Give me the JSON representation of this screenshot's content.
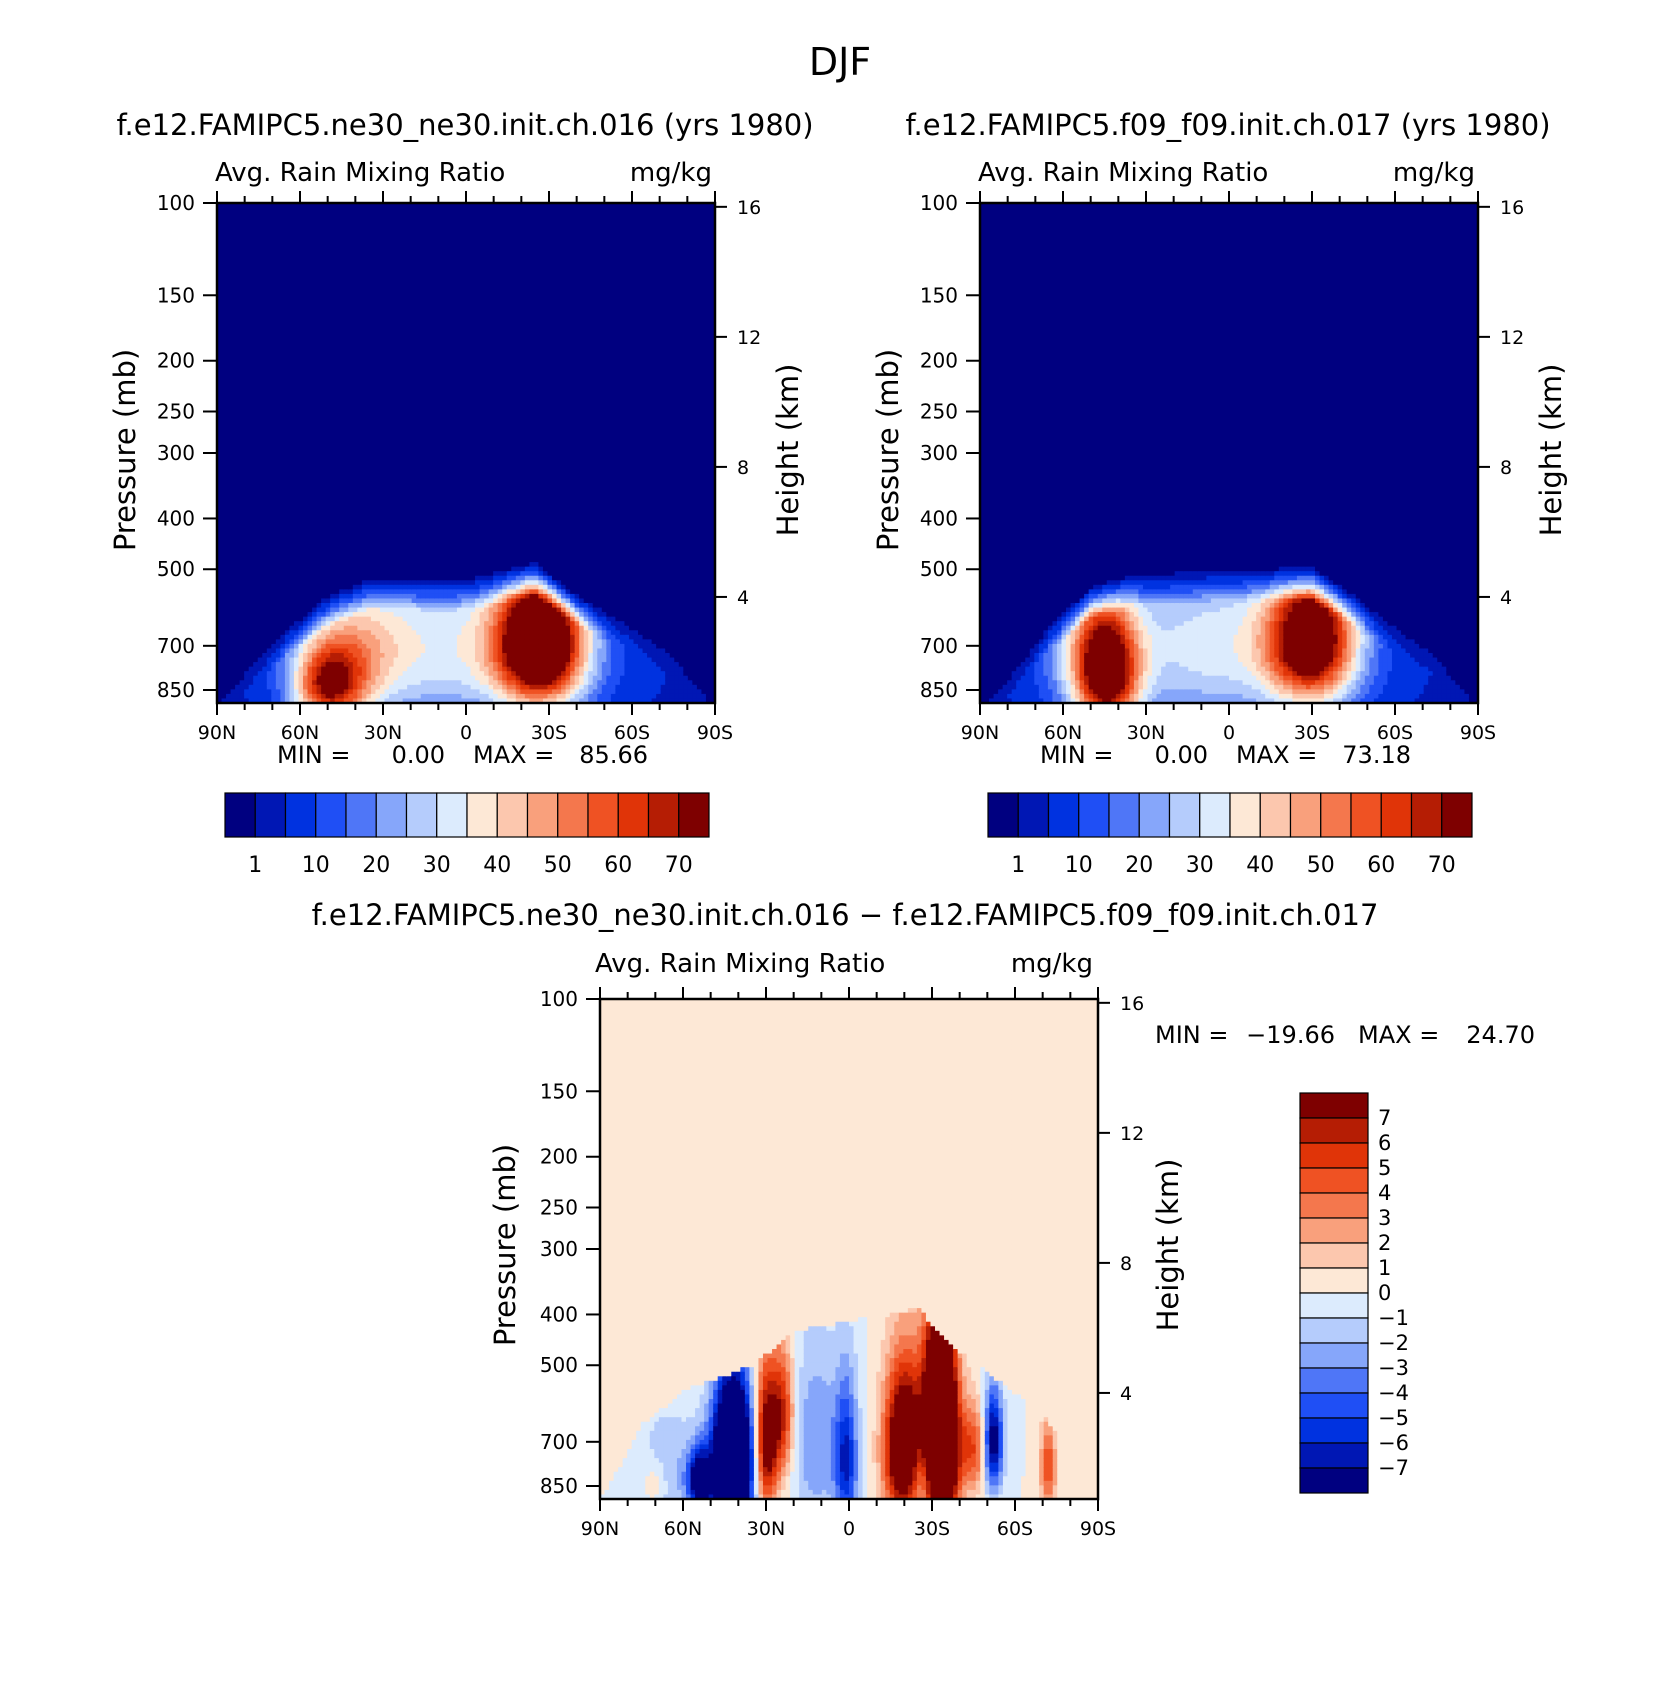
{
  "figure": {
    "title": "DJF"
  },
  "colors": {
    "abs_scale": [
      "#000080",
      "#0017b4",
      "#0032e0",
      "#1f4ff5",
      "#4f76f7",
      "#86a6fa",
      "#b5ccfc",
      "#dcebfd",
      "#fde8d6",
      "#fcc7ae",
      "#f9a07c",
      "#f4774d",
      "#ef5223",
      "#e03408",
      "#b51d04",
      "#7e0000"
    ],
    "diff_scale": [
      "#000080",
      "#0017b4",
      "#0032e0",
      "#1f4ff5",
      "#4f76f7",
      "#86a6fa",
      "#b5ccfc",
      "#dcebfd",
      "#fde8d6",
      "#fcc7ae",
      "#f9a07c",
      "#f4774d",
      "#ef5223",
      "#e03408",
      "#b51d04",
      "#7e0000"
    ]
  },
  "chart_data": [
    {
      "type": "heatmap",
      "panel": "left",
      "title": "f.e12.FAMIPC5.ne30_ne30.init.ch.016 (yrs 1980)",
      "subtitle_left": "Avg. Rain Mixing Ratio",
      "subtitle_right": "mg/kg",
      "ylabel": "Pressure (mb)",
      "y2label": "Height (km)",
      "x_ticks": [
        "90N",
        "60N",
        "30N",
        "0",
        "30S",
        "60S",
        "90S"
      ],
      "y_ticks": [
        "100",
        "150",
        "200",
        "250",
        "300",
        "400",
        "500",
        "700",
        "850"
      ],
      "y2_ticks": [
        "16",
        "12",
        "8",
        "4"
      ],
      "stats": {
        "min_label": "MIN =",
        "min": "0.00",
        "max_label": "MAX =",
        "max": "85.66"
      },
      "colorbar": {
        "orientation": "horizontal",
        "labels": [
          "1",
          "10",
          "20",
          "30",
          "40",
          "50",
          "60",
          "70"
        ]
      },
      "field": {
        "blobs": [
          {
            "lat": -27,
            "p": 690,
            "wlat": 11,
            "wp": 140,
            "amp": 86
          },
          {
            "lat": 50,
            "p": 830,
            "wlat": 9,
            "wp": 110,
            "amp": 55
          },
          {
            "lat": 5,
            "p": 700,
            "wlat": 34,
            "wp": 200,
            "amp": 30
          },
          {
            "lat": 38,
            "p": 720,
            "wlat": 12,
            "wp": 160,
            "amp": 20
          }
        ],
        "top_p": [
          [
            90,
            900
          ],
          [
            80,
            780
          ],
          [
            65,
            650
          ],
          [
            50,
            560
          ],
          [
            35,
            520
          ],
          [
            0,
            520
          ],
          [
            -25,
            485
          ],
          [
            -40,
            560
          ],
          [
            -60,
            640
          ],
          [
            -75,
            720
          ],
          [
            -90,
            900
          ]
        ]
      }
    },
    {
      "type": "heatmap",
      "panel": "right",
      "title": "f.e12.FAMIPC5.f09_f09.init.ch.017 (yrs 1980)",
      "subtitle_left": "Avg. Rain Mixing Ratio",
      "subtitle_right": "mg/kg",
      "ylabel": "Pressure (mb)",
      "y2label": "Height (km)",
      "x_ticks": [
        "90N",
        "60N",
        "30N",
        "0",
        "30S",
        "60S",
        "90S"
      ],
      "y_ticks": [
        "100",
        "150",
        "200",
        "250",
        "300",
        "400",
        "500",
        "700",
        "850"
      ],
      "y2_ticks": [
        "16",
        "12",
        "8",
        "4"
      ],
      "stats": {
        "min_label": "MIN =",
        "min": "0.00",
        "max_label": "MAX =",
        "max": "73.18"
      },
      "colorbar": {
        "orientation": "horizontal",
        "labels": [
          "1",
          "10",
          "20",
          "30",
          "40",
          "50",
          "60",
          "70"
        ]
      },
      "field": {
        "blobs": [
          {
            "lat": -30,
            "p": 680,
            "wlat": 11,
            "wp": 140,
            "amp": 73
          },
          {
            "lat": 44,
            "p": 790,
            "wlat": 8,
            "wp": 150,
            "amp": 65
          },
          {
            "lat": 5,
            "p": 700,
            "wlat": 34,
            "wp": 200,
            "amp": 30
          },
          {
            "lat": 52,
            "p": 700,
            "wlat": 10,
            "wp": 160,
            "amp": 18
          }
        ],
        "top_p": [
          [
            90,
            900
          ],
          [
            78,
            780
          ],
          [
            65,
            640
          ],
          [
            50,
            540
          ],
          [
            35,
            510
          ],
          [
            0,
            500
          ],
          [
            -30,
            495
          ],
          [
            -45,
            560
          ],
          [
            -60,
            640
          ],
          [
            -75,
            720
          ],
          [
            -90,
            900
          ]
        ]
      }
    },
    {
      "type": "heatmap",
      "panel": "bottom",
      "title": "f.e12.FAMIPC5.ne30_ne30.init.ch.016 − f.e12.FAMIPC5.f09_f09.init.ch.017",
      "subtitle_left": "Avg. Rain Mixing Ratio",
      "subtitle_right": "mg/kg",
      "ylabel": "Pressure (mb)",
      "y2label": "Height (km)",
      "x_ticks": [
        "90N",
        "60N",
        "30N",
        "0",
        "30S",
        "60S",
        "90S"
      ],
      "y_ticks": [
        "100",
        "150",
        "200",
        "250",
        "300",
        "400",
        "500",
        "700",
        "850"
      ],
      "y2_ticks": [
        "16",
        "12",
        "8",
        "4"
      ],
      "stats": {
        "min_label": "MIN =",
        "min": "−19.66",
        "max_label": "MAX =",
        "max": "24.70"
      },
      "colorbar": {
        "orientation": "vertical",
        "labels": [
          "7",
          "6",
          "5",
          "4",
          "3",
          "2",
          "1",
          "0",
          "−1",
          "−2",
          "−3",
          "−4",
          "−5",
          "−6",
          "−7"
        ]
      },
      "field": {
        "blobs": [
          {
            "lat": 42,
            "p": 760,
            "wlat": 5,
            "wp": 170,
            "amp": -18
          },
          {
            "lat": 54,
            "p": 830,
            "wlat": 3,
            "wp": 80,
            "amp": -9
          },
          {
            "lat": 30,
            "p": 700,
            "wlat": 3,
            "wp": 160,
            "amp": 9
          },
          {
            "lat": 24,
            "p": 620,
            "wlat": 3,
            "wp": 120,
            "amp": 6
          },
          {
            "lat": 12,
            "p": 700,
            "wlat": 6,
            "wp": 200,
            "amp": -3
          },
          {
            "lat": 1,
            "p": 760,
            "wlat": 3,
            "wp": 180,
            "amp": -6
          },
          {
            "lat": -20,
            "p": 720,
            "wlat": 5,
            "wp": 170,
            "amp": 12
          },
          {
            "lat": -33,
            "p": 690,
            "wlat": 4,
            "wp": 210,
            "amp": 22
          },
          {
            "lat": -28,
            "p": 800,
            "wlat": 4,
            "wp": 110,
            "amp": -5
          },
          {
            "lat": -45,
            "p": 720,
            "wlat": 4,
            "wp": 100,
            "amp": 5
          },
          {
            "lat": -52,
            "p": 700,
            "wlat": 2.5,
            "wp": 110,
            "amp": -9
          },
          {
            "lat": -72,
            "p": 780,
            "wlat": 2,
            "wp": 110,
            "amp": 5
          },
          {
            "lat": 65,
            "p": 800,
            "wlat": 8,
            "wp": 150,
            "amp": -2
          },
          {
            "lat": 70,
            "p": 840,
            "wlat": 3,
            "wp": 60,
            "amp": 2
          }
        ],
        "top_p": [
          [
            90,
            900
          ],
          [
            75,
            650
          ],
          [
            60,
            560
          ],
          [
            35,
            500
          ],
          [
            20,
            430
          ],
          [
            -25,
            390
          ],
          [
            -40,
            470
          ],
          [
            -55,
            540
          ],
          [
            -70,
            620
          ],
          [
            -85,
            780
          ],
          [
            -90,
            900
          ]
        ]
      }
    }
  ]
}
